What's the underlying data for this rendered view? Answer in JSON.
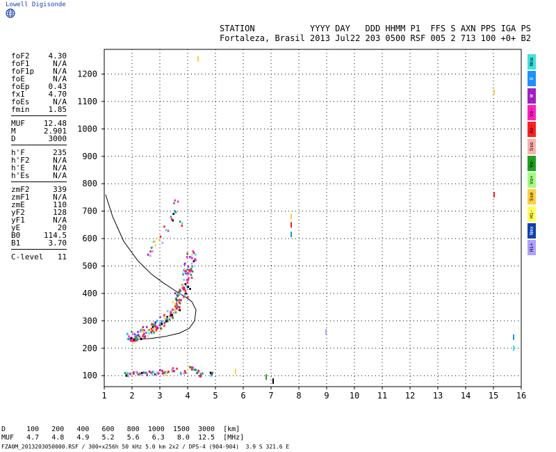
{
  "logo": {
    "text": "Lowell Digisonde",
    "icon": "globe-icon",
    "color": "#1a3fb0"
  },
  "header": {
    "line1": "STATION           YYYY DAY   DDD HHMM P1  FFS S AXN PPS IGA PS",
    "line2": "Fortaleza, Brasil 2013 Jul22 203 0500 RSF 005 2 713 100 +0+ B2"
  },
  "params": [
    [
      {
        "k": "foF2",
        "v": "4.30"
      },
      {
        "k": "foF1",
        "v": "N/A"
      },
      {
        "k": "foF1p",
        "v": "N/A"
      },
      {
        "k": "foE",
        "v": "N/A"
      },
      {
        "k": "foEp",
        "v": "0.43"
      },
      {
        "k": "fxI",
        "v": "4.70"
      },
      {
        "k": "foEs",
        "v": "N/A"
      },
      {
        "k": "fmin",
        "v": "1.85"
      }
    ],
    [
      {
        "k": "MUF",
        "v": "12.48"
      },
      {
        "k": "M",
        "v": "2.901"
      },
      {
        "k": "D",
        "v": "3000"
      }
    ],
    [
      {
        "k": "h'F",
        "v": "235"
      },
      {
        "k": "h'F2",
        "v": "N/A"
      },
      {
        "k": "h'E",
        "v": "N/A"
      },
      {
        "k": "h'Es",
        "v": "N/A"
      }
    ],
    [
      {
        "k": "zmF2",
        "v": "339"
      },
      {
        "k": "zmF1",
        "v": "N/A"
      },
      {
        "k": "zmE",
        "v": "110"
      },
      {
        "k": "yF2",
        "v": "128"
      },
      {
        "k": "yF1",
        "v": "N/A"
      },
      {
        "k": "yE",
        "v": "20"
      },
      {
        "k": "B0",
        "v": "114.5"
      },
      {
        "k": "B1",
        "v": "3.70"
      }
    ],
    [
      {
        "k": "C-level",
        "v": "11"
      }
    ]
  ],
  "legend": [
    {
      "label": "Nno",
      "color": "#40e0e0"
    },
    {
      "label": "E",
      "color": "#1e90ff"
    },
    {
      "label": "W",
      "color": "#a020c0"
    },
    {
      "label": "Vo-",
      "color": "#ff20c0"
    },
    {
      "label": "Xo-",
      "color": "#ff2020"
    },
    {
      "label": "Sso",
      "color": "#ffb0b0"
    },
    {
      "label": "Vo-",
      "color": "#20a020"
    },
    {
      "label": "Vo+",
      "color": "#a0ff80"
    },
    {
      "label": "Sse",
      "color": "#ffd040"
    },
    {
      "label": "Hi-",
      "color": "#ffff60"
    },
    {
      "label": "Nmx",
      "color": "#1040b0"
    },
    {
      "label": "Hi+",
      "color": "#b0a0ff"
    }
  ],
  "chart_data": {
    "type": "scatter",
    "x_ticks": [
      "1",
      "2",
      "3",
      "4",
      "5",
      "6",
      "7",
      "8",
      "9",
      "10",
      "11",
      "12",
      "13",
      "14",
      "15",
      "16"
    ],
    "y_ticks": [
      "100",
      "200",
      "300",
      "400",
      "500",
      "600",
      "700",
      "800",
      "900",
      "1000",
      "1100",
      "1200"
    ],
    "xlim": [
      1,
      16
    ],
    "ylim": [
      60,
      1290
    ],
    "grid": "dotted",
    "profile_curve": {
      "x": [
        1.05,
        1.3,
        1.7,
        2.2,
        2.7,
        3.1,
        3.4,
        3.7,
        3.95,
        4.15,
        4.3,
        4.25,
        4.05,
        3.7,
        3.2,
        2.7,
        2.3,
        2.0,
        1.95
      ],
      "y": [
        760,
        680,
        590,
        520,
        470,
        440,
        420,
        400,
        385,
        370,
        340,
        300,
        272,
        255,
        243,
        236,
        233,
        235,
        240
      ]
    },
    "trace": [
      {
        "x": 1.95,
        "y": 240
      },
      {
        "x": 2.1,
        "y": 247
      },
      {
        "x": 2.3,
        "y": 255
      },
      {
        "x": 2.5,
        "y": 265
      },
      {
        "x": 2.7,
        "y": 275
      },
      {
        "x": 2.9,
        "y": 288
      },
      {
        "x": 3.1,
        "y": 300
      },
      {
        "x": 3.3,
        "y": 320
      },
      {
        "x": 3.5,
        "y": 340
      },
      {
        "x": 3.6,
        "y": 360
      },
      {
        "x": 3.7,
        "y": 385
      },
      {
        "x": 3.8,
        "y": 410
      },
      {
        "x": 3.9,
        "y": 440
      },
      {
        "x": 3.95,
        "y": 470
      },
      {
        "x": 4.0,
        "y": 500
      },
      {
        "x": 4.1,
        "y": 540
      }
    ],
    "spread": [
      {
        "x": 2.6,
        "y": 550
      },
      {
        "x": 2.7,
        "y": 565
      },
      {
        "x": 2.8,
        "y": 585
      },
      {
        "x": 3.0,
        "y": 600
      },
      {
        "x": 3.2,
        "y": 640
      },
      {
        "x": 3.4,
        "y": 680
      },
      {
        "x": 3.5,
        "y": 700
      },
      {
        "x": 3.55,
        "y": 740
      },
      {
        "x": 3.7,
        "y": 660
      }
    ],
    "low_layer": [
      {
        "x": 1.8,
        "y": 108
      },
      {
        "x": 2.0,
        "y": 110
      },
      {
        "x": 2.2,
        "y": 112
      },
      {
        "x": 2.4,
        "y": 110
      },
      {
        "x": 2.6,
        "y": 112
      },
      {
        "x": 2.8,
        "y": 115
      },
      {
        "x": 3.0,
        "y": 118
      },
      {
        "x": 3.2,
        "y": 112
      },
      {
        "x": 3.5,
        "y": 125
      },
      {
        "x": 3.8,
        "y": 115
      },
      {
        "x": 4.1,
        "y": 130
      },
      {
        "x": 4.3,
        "y": 120
      },
      {
        "x": 4.5,
        "y": 105
      },
      {
        "x": 4.8,
        "y": 108
      }
    ],
    "isolated": [
      {
        "x": 4.35,
        "y": 1255,
        "color": "#ffd040"
      },
      {
        "x": 7.7,
        "y": 680,
        "color": "#ffd040"
      },
      {
        "x": 7.7,
        "y": 650,
        "color": "#ff2020"
      },
      {
        "x": 7.7,
        "y": 615,
        "color": "#1e90ff"
      },
      {
        "x": 8.95,
        "y": 260,
        "color": "#b0a0ff"
      },
      {
        "x": 15.0,
        "y": 1135,
        "color": "#ffd040"
      },
      {
        "x": 15.0,
        "y": 760,
        "color": "#ff2020"
      },
      {
        "x": 15.7,
        "y": 240,
        "color": "#1e90ff"
      },
      {
        "x": 15.7,
        "y": 200,
        "color": "#40e0e0"
      },
      {
        "x": 5.7,
        "y": 115,
        "color": "#ffd040"
      },
      {
        "x": 6.8,
        "y": 95,
        "color": "#20a020"
      },
      {
        "x": 7.05,
        "y": 80,
        "color": "#000000"
      }
    ]
  },
  "bottom": {
    "row1": "D     100   200   400   600   800  1000  1500  3000  [km]",
    "row2": "MUF   4.7   4.8   4.9   5.2   5.6   6.3   8.0  12.5  [MHz]",
    "footer": "FZA0M_2013203050000.RSF / 300+x256h 50 kHz 5.0 km 2x2 / DPS-4 (904-904)  3.9 S 321.6 E"
  }
}
